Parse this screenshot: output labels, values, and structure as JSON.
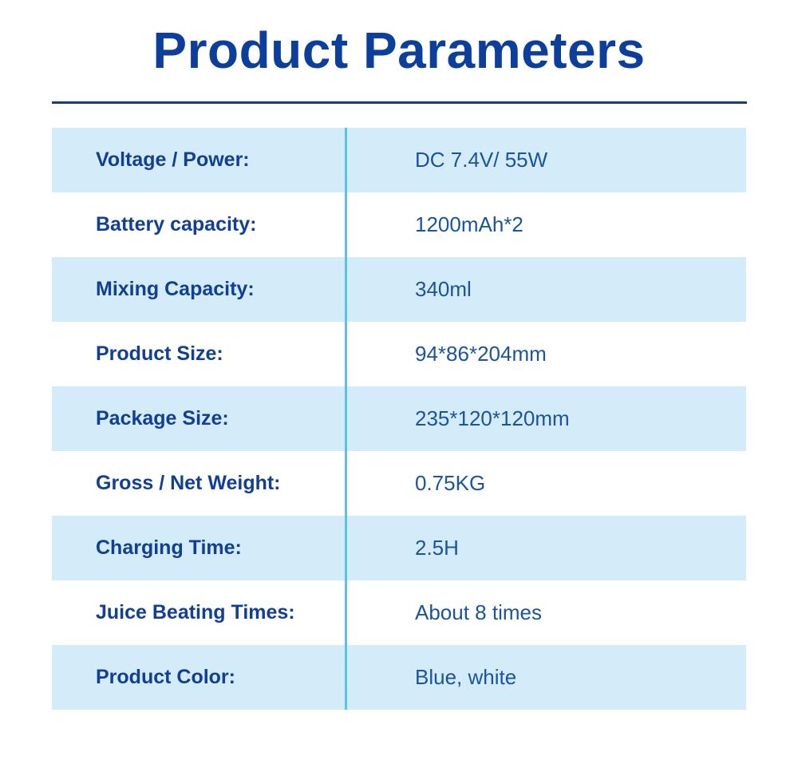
{
  "page": {
    "title": "Product Parameters"
  },
  "table": {
    "rows": [
      {
        "label": "Voltage / Power:",
        "value": "DC 7.4V/ 55W"
      },
      {
        "label": "Battery capacity:",
        "value": "1200mAh*2"
      },
      {
        "label": "Mixing Capacity:",
        "value": "340ml"
      },
      {
        "label": "Product Size:",
        "value": "94*86*204mm"
      },
      {
        "label": "Package Size:",
        "value": "235*120*120mm"
      },
      {
        "label": "Gross / Net Weight:",
        "value": "0.75KG"
      },
      {
        "label": "Charging Time:",
        "value": "2.5H"
      },
      {
        "label": "Juice Beating Times:",
        "value": "About 8 times"
      },
      {
        "label": "Product Color:",
        "value": "Blue, white"
      }
    ]
  },
  "colors": {
    "title_blue": "#0C3E9C",
    "label_blue": "#103F93",
    "value_blue": "#1A549E",
    "rule_navy": "#163D80",
    "row_light_blue": "#D4ECF9",
    "divider_blue": "#5BC1E8",
    "background": "#FFFFFF"
  }
}
